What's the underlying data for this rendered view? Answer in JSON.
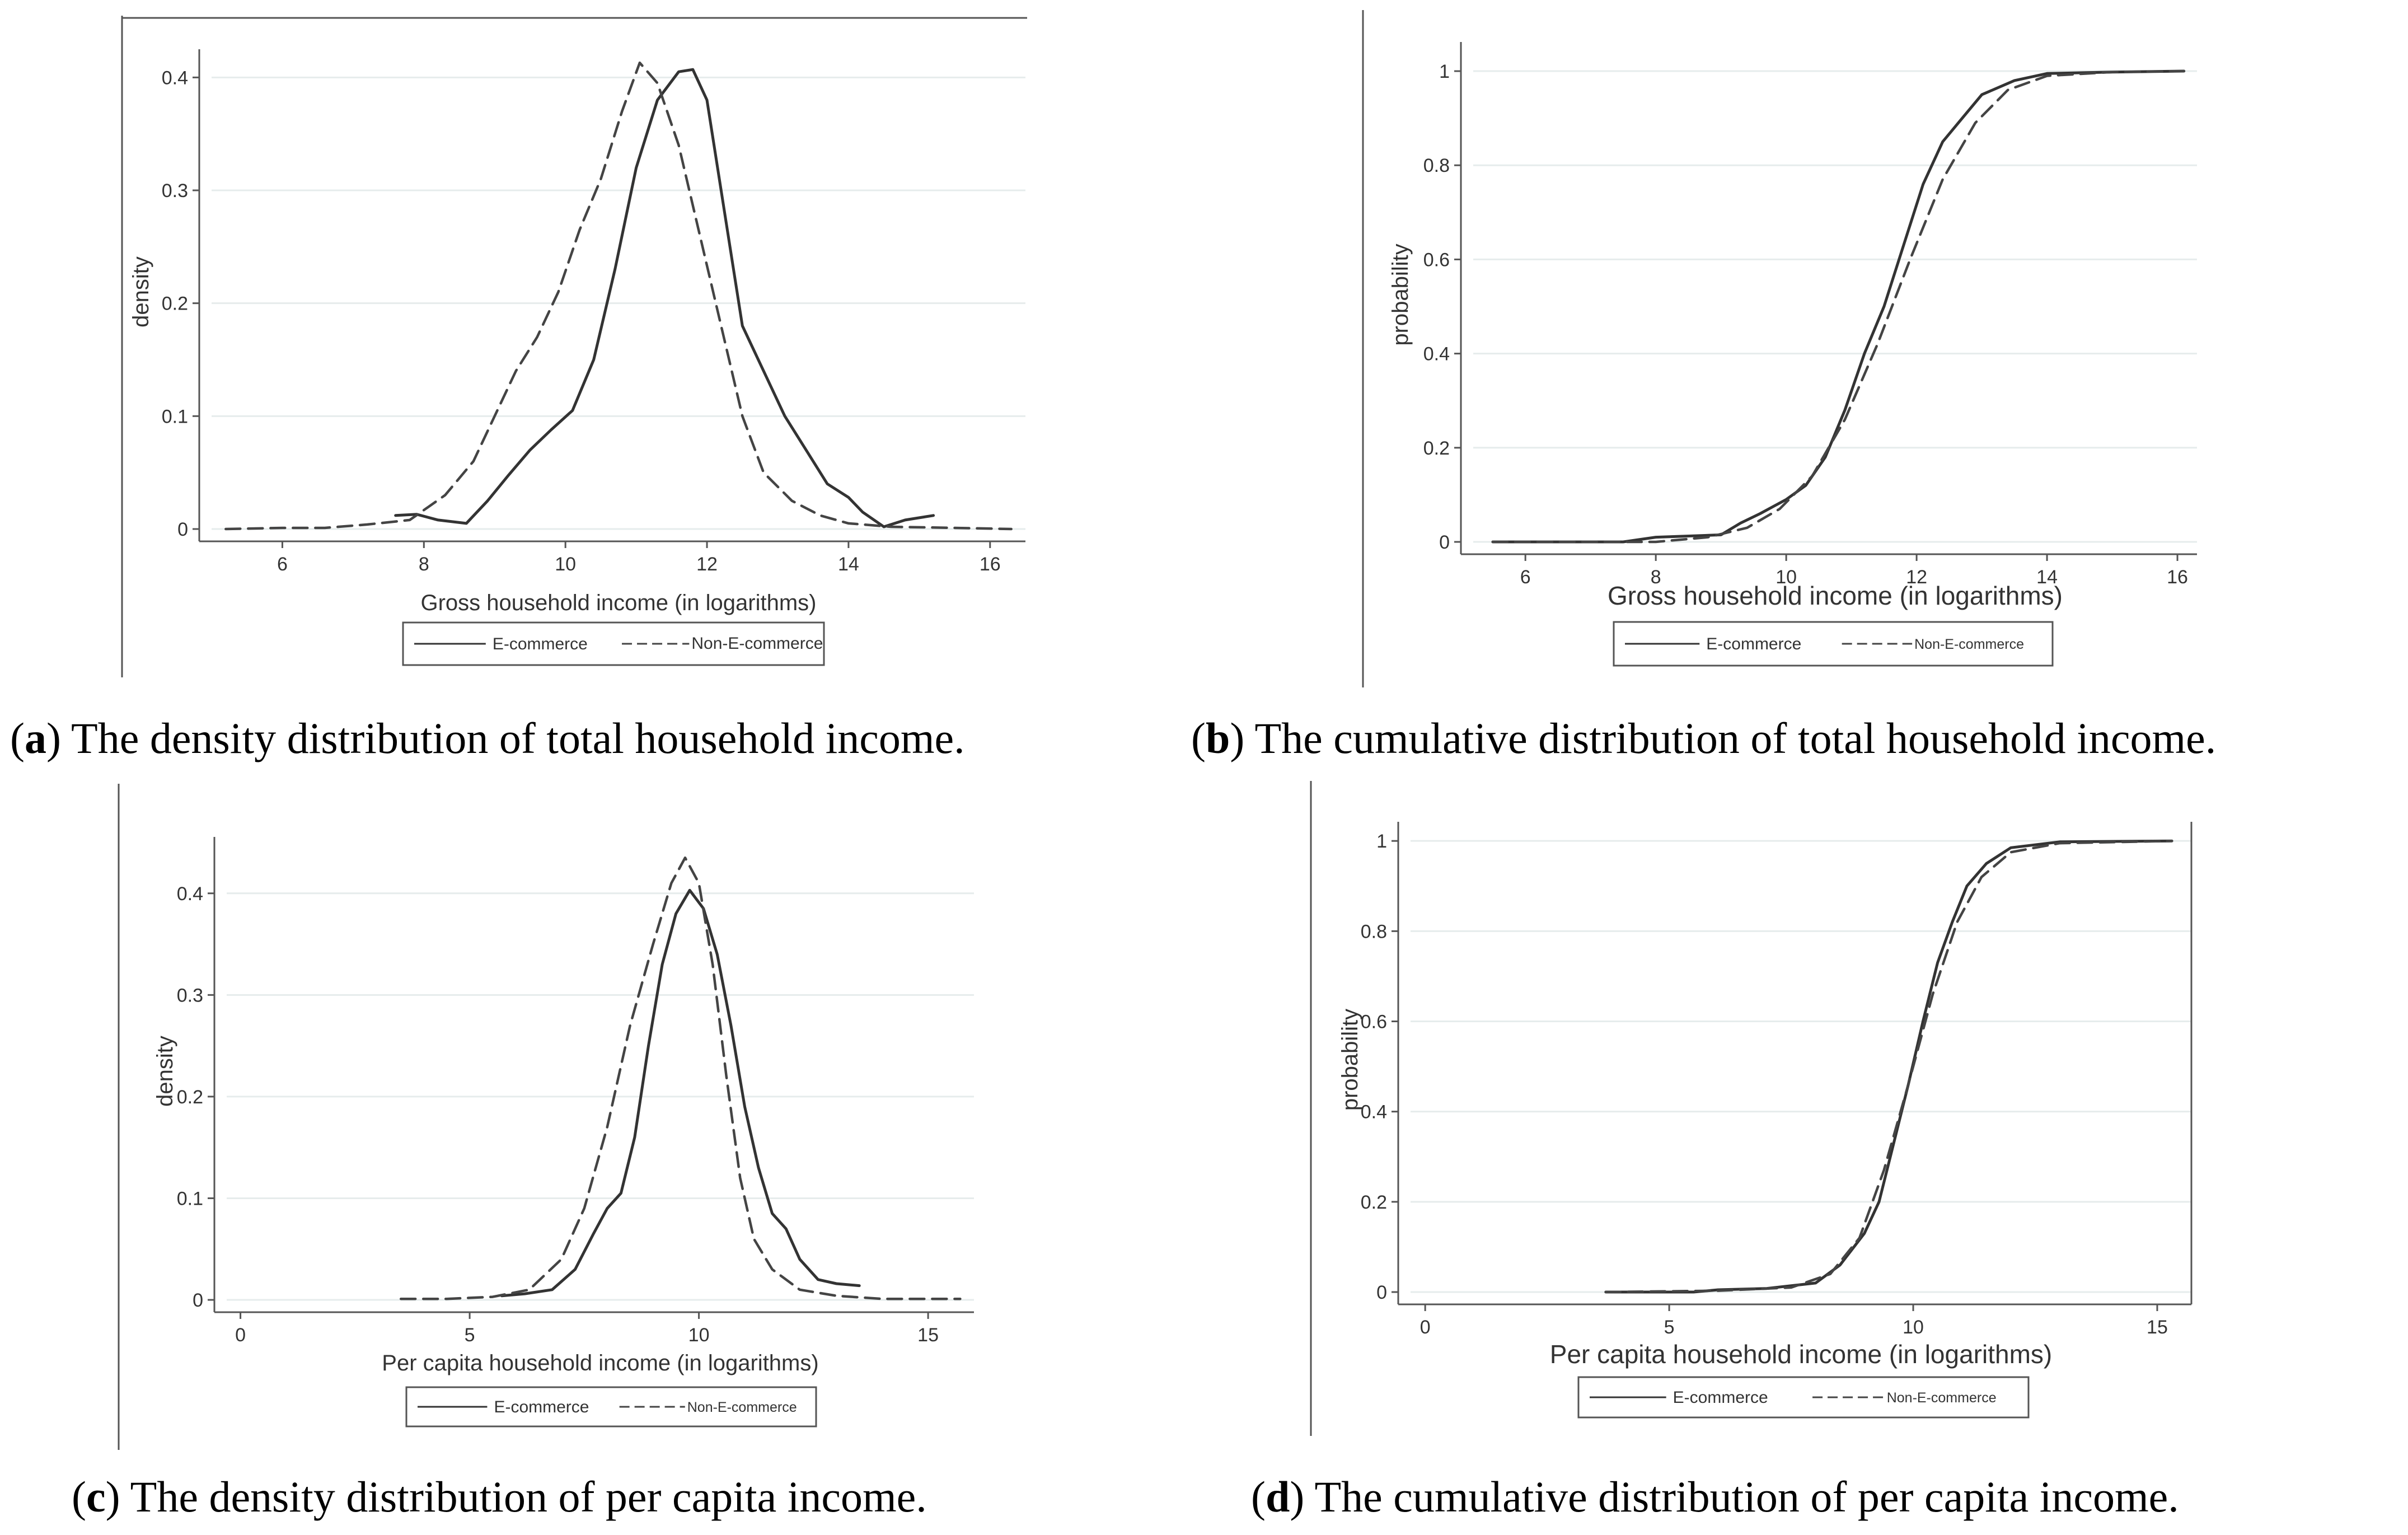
{
  "captions": [
    {
      "label": "a",
      "text": ") The density distribution of total household income."
    },
    {
      "label": "b",
      "text": ") The cumulative distribution of total household income."
    },
    {
      "label": "c",
      "text": ") The density distribution of per capita income."
    },
    {
      "label": "d",
      "text": ") The cumulative distribution of per capita income."
    }
  ],
  "legend": {
    "series1": "E-commerce",
    "series2": "Non-E-commerce"
  },
  "chart_data": [
    {
      "id": "a",
      "type": "line",
      "xlabel": "Gross household income (in logarithms)",
      "ylabel": "density",
      "xlim": [
        5,
        16.5
      ],
      "ylim": [
        0,
        0.42
      ],
      "xticks": [
        6,
        8,
        10,
        12,
        14,
        16
      ],
      "yticks": [
        0,
        0.1,
        0.2,
        0.3,
        0.4
      ],
      "ytick_labels": [
        "0",
        "0.1",
        "0.2",
        "0.3",
        "0.4"
      ],
      "series": [
        {
          "name": "E-commerce",
          "style": "solid",
          "points": [
            [
              7.6,
              0.012
            ],
            [
              7.9,
              0.013
            ],
            [
              8.2,
              0.008
            ],
            [
              8.6,
              0.005
            ],
            [
              8.9,
              0.025
            ],
            [
              9.2,
              0.048
            ],
            [
              9.5,
              0.07
            ],
            [
              9.8,
              0.088
            ],
            [
              10.1,
              0.105
            ],
            [
              10.4,
              0.15
            ],
            [
              10.7,
              0.23
            ],
            [
              11.0,
              0.32
            ],
            [
              11.3,
              0.38
            ],
            [
              11.6,
              0.405
            ],
            [
              11.8,
              0.407
            ],
            [
              12.0,
              0.38
            ],
            [
              12.2,
              0.3
            ],
            [
              12.5,
              0.18
            ],
            [
              12.8,
              0.14
            ],
            [
              13.1,
              0.1
            ],
            [
              13.4,
              0.07
            ],
            [
              13.7,
              0.04
            ],
            [
              14.0,
              0.028
            ],
            [
              14.2,
              0.015
            ],
            [
              14.5,
              0.002
            ],
            [
              14.8,
              0.008
            ],
            [
              15.2,
              0.012
            ]
          ]
        },
        {
          "name": "Non-E-commerce",
          "style": "dashed",
          "points": [
            [
              5.2,
              0.0
            ],
            [
              6.0,
              0.001
            ],
            [
              6.6,
              0.001
            ],
            [
              7.2,
              0.004
            ],
            [
              7.8,
              0.008
            ],
            [
              8.3,
              0.03
            ],
            [
              8.7,
              0.06
            ],
            [
              9.0,
              0.1
            ],
            [
              9.3,
              0.14
            ],
            [
              9.6,
              0.17
            ],
            [
              9.9,
              0.21
            ],
            [
              10.2,
              0.265
            ],
            [
              10.5,
              0.31
            ],
            [
              10.8,
              0.37
            ],
            [
              11.05,
              0.413
            ],
            [
              11.3,
              0.395
            ],
            [
              11.6,
              0.34
            ],
            [
              11.9,
              0.26
            ],
            [
              12.2,
              0.18
            ],
            [
              12.5,
              0.1
            ],
            [
              12.8,
              0.05
            ],
            [
              13.2,
              0.025
            ],
            [
              13.6,
              0.012
            ],
            [
              14.0,
              0.005
            ],
            [
              14.6,
              0.002
            ],
            [
              15.5,
              0.001
            ],
            [
              16.3,
              0.0
            ]
          ]
        }
      ]
    },
    {
      "id": "b",
      "type": "line",
      "xlabel": "Gross household income (in logarithms)",
      "ylabel": "probability",
      "xlim": [
        5.2,
        16.3
      ],
      "ylim": [
        0,
        1.05
      ],
      "xticks": [
        6,
        8,
        10,
        12,
        14,
        16
      ],
      "yticks": [
        0,
        0.2,
        0.4,
        0.6,
        0.8,
        1
      ],
      "ytick_labels": [
        "0",
        "0.2",
        "0.4",
        "0.6",
        "0.8",
        "1"
      ],
      "series": [
        {
          "name": "E-commerce",
          "style": "solid",
          "points": [
            [
              5.5,
              0.0
            ],
            [
              7.5,
              0.0
            ],
            [
              8.0,
              0.01
            ],
            [
              9.0,
              0.015
            ],
            [
              9.3,
              0.04
            ],
            [
              9.6,
              0.06
            ],
            [
              10.0,
              0.09
            ],
            [
              10.3,
              0.12
            ],
            [
              10.6,
              0.18
            ],
            [
              10.9,
              0.28
            ],
            [
              11.2,
              0.4
            ],
            [
              11.5,
              0.5
            ],
            [
              11.8,
              0.63
            ],
            [
              12.1,
              0.76
            ],
            [
              12.4,
              0.85
            ],
            [
              12.7,
              0.9
            ],
            [
              13.0,
              0.95
            ],
            [
              13.5,
              0.98
            ],
            [
              14.0,
              0.995
            ],
            [
              15.0,
              0.998
            ],
            [
              16.1,
              1.0
            ]
          ]
        },
        {
          "name": "Non-E-commerce",
          "style": "dashed",
          "points": [
            [
              5.5,
              0.0
            ],
            [
              8.0,
              0.0
            ],
            [
              8.8,
              0.01
            ],
            [
              9.4,
              0.03
            ],
            [
              9.9,
              0.07
            ],
            [
              10.4,
              0.14
            ],
            [
              10.9,
              0.26
            ],
            [
              11.4,
              0.42
            ],
            [
              11.9,
              0.6
            ],
            [
              12.4,
              0.77
            ],
            [
              12.9,
              0.89
            ],
            [
              13.4,
              0.96
            ],
            [
              14.0,
              0.99
            ],
            [
              15.0,
              0.998
            ],
            [
              16.1,
              1.0
            ]
          ]
        }
      ]
    },
    {
      "id": "c",
      "type": "line",
      "xlabel": "Per capita household income (in logarithms)",
      "ylabel": "density",
      "xlim": [
        -0.3,
        16
      ],
      "ylim": [
        0,
        0.45
      ],
      "xticks": [
        0,
        5,
        10,
        15
      ],
      "yticks": [
        0,
        0.1,
        0.2,
        0.3,
        0.4
      ],
      "ytick_labels": [
        "0",
        "0.1",
        "0.2",
        "0.3",
        "0.4"
      ],
      "series": [
        {
          "name": "E-commerce",
          "style": "solid",
          "points": [
            [
              5.7,
              0.004
            ],
            [
              6.2,
              0.006
            ],
            [
              6.8,
              0.01
            ],
            [
              7.3,
              0.03
            ],
            [
              7.7,
              0.065
            ],
            [
              8.0,
              0.09
            ],
            [
              8.3,
              0.105
            ],
            [
              8.6,
              0.16
            ],
            [
              8.9,
              0.25
            ],
            [
              9.2,
              0.33
            ],
            [
              9.5,
              0.38
            ],
            [
              9.8,
              0.403
            ],
            [
              10.1,
              0.385
            ],
            [
              10.4,
              0.34
            ],
            [
              10.7,
              0.27
            ],
            [
              11.0,
              0.19
            ],
            [
              11.3,
              0.13
            ],
            [
              11.6,
              0.085
            ],
            [
              11.9,
              0.07
            ],
            [
              12.2,
              0.04
            ],
            [
              12.6,
              0.02
            ],
            [
              13.0,
              0.016
            ],
            [
              13.5,
              0.014
            ]
          ]
        },
        {
          "name": "Non-E-commerce",
          "style": "dashed",
          "points": [
            [
              3.5,
              0.001
            ],
            [
              4.5,
              0.001
            ],
            [
              5.5,
              0.003
            ],
            [
              6.3,
              0.01
            ],
            [
              7.0,
              0.04
            ],
            [
              7.5,
              0.09
            ],
            [
              8.0,
              0.17
            ],
            [
              8.5,
              0.27
            ],
            [
              9.0,
              0.35
            ],
            [
              9.4,
              0.41
            ],
            [
              9.7,
              0.435
            ],
            [
              10.0,
              0.41
            ],
            [
              10.3,
              0.33
            ],
            [
              10.6,
              0.22
            ],
            [
              10.9,
              0.12
            ],
            [
              11.2,
              0.06
            ],
            [
              11.6,
              0.03
            ],
            [
              12.2,
              0.01
            ],
            [
              13.0,
              0.004
            ],
            [
              14.0,
              0.001
            ],
            [
              15.7,
              0.001
            ]
          ]
        }
      ]
    },
    {
      "id": "d",
      "type": "line",
      "xlabel": "Per capita household income (in logarithms)",
      "ylabel": "probability",
      "xlim": [
        -0.3,
        15.7
      ],
      "ylim": [
        0,
        1.03
      ],
      "xticks": [
        0,
        5,
        10,
        15
      ],
      "yticks": [
        0,
        0.2,
        0.4,
        0.6,
        0.8,
        1
      ],
      "ytick_labels": [
        "0",
        "0.2",
        "0.4",
        "0.6",
        "0.8",
        "1"
      ],
      "series": [
        {
          "name": "E-commerce",
          "style": "solid",
          "points": [
            [
              3.7,
              0.0
            ],
            [
              5.5,
              0.0
            ],
            [
              6.0,
              0.005
            ],
            [
              7.0,
              0.008
            ],
            [
              8.0,
              0.02
            ],
            [
              8.5,
              0.06
            ],
            [
              9.0,
              0.13
            ],
            [
              9.3,
              0.2
            ],
            [
              9.6,
              0.33
            ],
            [
              9.9,
              0.46
            ],
            [
              10.2,
              0.6
            ],
            [
              10.5,
              0.73
            ],
            [
              10.8,
              0.82
            ],
            [
              11.1,
              0.9
            ],
            [
              11.5,
              0.95
            ],
            [
              12.0,
              0.985
            ],
            [
              13.0,
              0.998
            ],
            [
              15.3,
              1.0
            ]
          ]
        },
        {
          "name": "Non-E-commerce",
          "style": "dashed",
          "points": [
            [
              3.7,
              0.0
            ],
            [
              6.0,
              0.003
            ],
            [
              7.5,
              0.01
            ],
            [
              8.3,
              0.04
            ],
            [
              8.9,
              0.12
            ],
            [
              9.4,
              0.27
            ],
            [
              9.9,
              0.46
            ],
            [
              10.4,
              0.66
            ],
            [
              10.9,
              0.82
            ],
            [
              11.4,
              0.92
            ],
            [
              12.0,
              0.975
            ],
            [
              13.0,
              0.995
            ],
            [
              15.3,
              1.0
            ]
          ]
        }
      ]
    }
  ]
}
